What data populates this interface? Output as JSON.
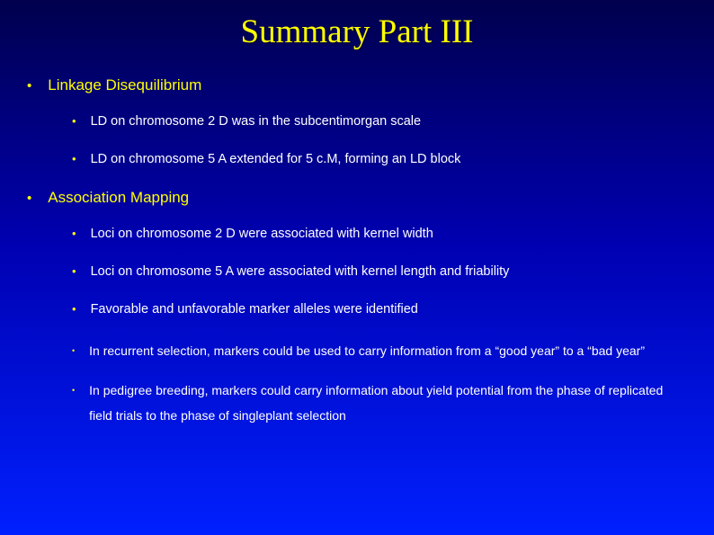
{
  "colors": {
    "title": "#ffff00",
    "heading": "#ffff00",
    "body_text": "#ffffff",
    "bullet": "#ffff00",
    "bg_top": "#00004d",
    "bg_mid": "#0000b0",
    "bg_bottom": "#0020ff"
  },
  "fonts": {
    "title_family": "Times New Roman",
    "body_family": "Arial",
    "title_size_pt": 28,
    "l1_size_pt": 13,
    "l2_size_pt": 11,
    "l3_size_pt": 10
  },
  "title": "Summary Part III",
  "sections": [
    {
      "heading": "Linkage Disequilibrium",
      "items": [
        {
          "text": "LD on chromosome 2 D was in the subcentimorgan scale",
          "level": 2
        },
        {
          "text": "LD on chromosome 5 A extended for 5 c.M, forming an LD block",
          "level": 2
        }
      ]
    },
    {
      "heading": "Association Mapping",
      "items": [
        {
          "text": "Loci on chromosome 2 D were associated with kernel width",
          "level": 2
        },
        {
          "text": "Loci on chromosome 5 A were associated with kernel length and friability",
          "level": 2
        },
        {
          "text": "Favorable and unfavorable marker alleles were identified",
          "level": 2
        },
        {
          "text": "In recurrent selection, markers could be used to carry information from a “good year” to a “bad year”",
          "level": 3
        },
        {
          "text": "In pedigree breeding, markers could carry information about yield potential from the phase of replicated field trials to the phase of singleplant selection",
          "level": 3
        }
      ]
    }
  ]
}
